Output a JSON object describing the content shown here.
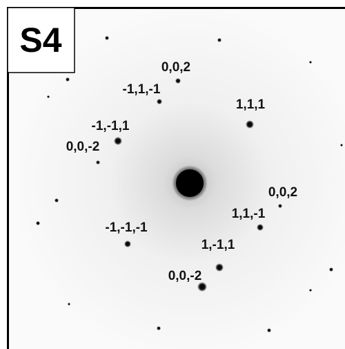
{
  "panel_label": "S4",
  "spot_labels": [
    "0,0,2",
    "-1,1,-1",
    "1,1,1",
    "-1,-1,1",
    "0,0,-2",
    "0,0,2",
    "1,1,-1",
    "-1,-1,-1",
    "1,-1,1",
    "0,0,-2"
  ]
}
